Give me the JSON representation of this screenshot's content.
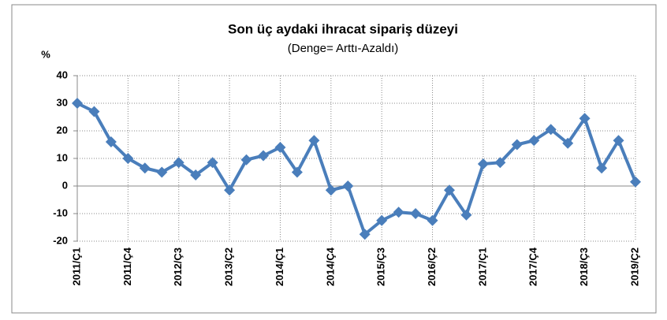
{
  "chart_data": {
    "type": "line",
    "title": "Son üç aydaki ihracat sipariş düzeyi",
    "subtitle": "(Denge= Arttı-Azaldı)",
    "y_label": "%",
    "categories": [
      "2011/Ç1",
      null,
      null,
      "2011/Ç4",
      null,
      null,
      "2012/Ç3",
      null,
      null,
      "2013/Ç2",
      null,
      null,
      "2014/Ç1",
      null,
      null,
      "2014/Ç4",
      null,
      null,
      "2015/Ç3",
      null,
      null,
      "2016/Ç2",
      null,
      null,
      "2017/Ç1",
      null,
      null,
      "2017/Ç4",
      null,
      null,
      "2018/Ç3",
      null,
      null,
      "2019/Ç2"
    ],
    "values": [
      30,
      27,
      16,
      10,
      6.5,
      5,
      8.5,
      4,
      8.5,
      -1.5,
      9.5,
      11,
      14,
      5,
      16.5,
      -1.5,
      0,
      -17.5,
      -12.5,
      -9.5,
      -10,
      -12.5,
      -1.5,
      -10.5,
      8,
      8.5,
      15,
      16.5,
      20.5,
      15.5,
      24.5,
      6.5,
      16.5,
      1.5
    ],
    "color": "#4a7ebb",
    "ylim": [
      -20,
      40
    ],
    "yticks": [
      -20,
      -10,
      0,
      10,
      20,
      30,
      40
    ],
    "grid": true
  }
}
